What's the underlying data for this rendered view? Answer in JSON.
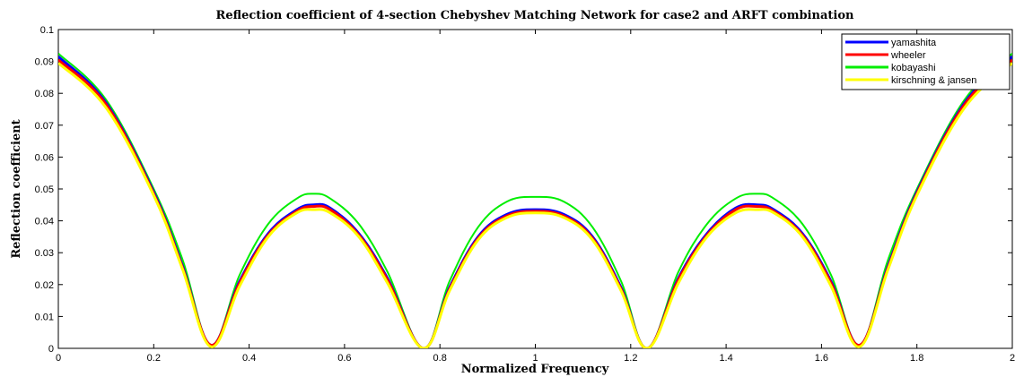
{
  "chart_data": {
    "type": "line",
    "title": "Reflection coefficient of 4-section Chebyshev Matching Network for case2 and ARFT combination",
    "xlabel": "Normalized Frequency",
    "ylabel": "Reflection coefficient",
    "xlim": [
      0,
      2
    ],
    "ylim": [
      0,
      0.1
    ],
    "x_ticks": [
      "0",
      "0.2",
      "0.4",
      "0.6",
      "0.8",
      "1",
      "1.2",
      "1.4",
      "1.6",
      "1.8",
      "2"
    ],
    "x_tick_values": [
      0,
      0.2,
      0.4,
      0.6,
      0.8,
      1.0,
      1.2,
      1.4,
      1.6,
      1.8,
      2.0
    ],
    "y_ticks": [
      "0",
      "0.01",
      "0.02",
      "0.03",
      "0.04",
      "0.05",
      "0.06",
      "0.07",
      "0.08",
      "0.09",
      "0.1"
    ],
    "y_tick_values": [
      0,
      0.01,
      0.02,
      0.03,
      0.04,
      0.05,
      0.06,
      0.07,
      0.08,
      0.09,
      0.1
    ],
    "grid": false,
    "legend_position": "top-right",
    "series": [
      {
        "name": "yamashita",
        "color": "#0000ff",
        "x": [
          0,
          0.1,
          0.2,
          0.26,
          0.32,
          0.38,
          0.44,
          0.5,
          0.535,
          0.57,
          0.63,
          0.69,
          0.765,
          0.82,
          0.88,
          0.94,
          1.0,
          1.06,
          1.12,
          1.18,
          1.235,
          1.3,
          1.36,
          1.42,
          1.465,
          1.5,
          1.56,
          1.62,
          1.68,
          1.74,
          1.8,
          1.9,
          2.0
        ],
        "y": [
          0.0915,
          0.077,
          0.049,
          0.026,
          0.001,
          0.021,
          0.036,
          0.0435,
          0.045,
          0.044,
          0.036,
          0.022,
          0.0,
          0.019,
          0.035,
          0.042,
          0.0435,
          0.042,
          0.035,
          0.019,
          0.0,
          0.022,
          0.036,
          0.044,
          0.045,
          0.0435,
          0.036,
          0.021,
          0.001,
          0.026,
          0.049,
          0.077,
          0.0915
        ]
      },
      {
        "name": "wheeler",
        "color": "#ff0000",
        "x": [
          0,
          0.1,
          0.2,
          0.26,
          0.32,
          0.38,
          0.44,
          0.5,
          0.535,
          0.57,
          0.63,
          0.69,
          0.765,
          0.82,
          0.88,
          0.94,
          1.0,
          1.06,
          1.12,
          1.18,
          1.235,
          1.3,
          1.36,
          1.42,
          1.465,
          1.5,
          1.56,
          1.62,
          1.68,
          1.74,
          1.8,
          1.9,
          2.0
        ],
        "y": [
          0.0905,
          0.0765,
          0.0485,
          0.0255,
          0.001,
          0.0205,
          0.0355,
          0.043,
          0.0445,
          0.0435,
          0.0355,
          0.0215,
          0.0,
          0.0185,
          0.0345,
          0.0415,
          0.043,
          0.0415,
          0.0345,
          0.0185,
          0.0,
          0.0215,
          0.0355,
          0.0435,
          0.0445,
          0.043,
          0.0355,
          0.0205,
          0.001,
          0.0255,
          0.0485,
          0.0765,
          0.0905
        ]
      },
      {
        "name": "kobayashi",
        "color": "#00ee00",
        "x": [
          0,
          0.1,
          0.2,
          0.26,
          0.32,
          0.38,
          0.44,
          0.5,
          0.535,
          0.57,
          0.63,
          0.69,
          0.765,
          0.82,
          0.88,
          0.94,
          1.0,
          1.06,
          1.12,
          1.18,
          1.235,
          1.3,
          1.36,
          1.42,
          1.465,
          1.5,
          1.56,
          1.62,
          1.68,
          1.74,
          1.8,
          1.9,
          2.0
        ],
        "y": [
          0.0925,
          0.078,
          0.05,
          0.028,
          0.001,
          0.023,
          0.039,
          0.047,
          0.0485,
          0.047,
          0.039,
          0.024,
          0.0,
          0.021,
          0.038,
          0.046,
          0.0475,
          0.046,
          0.038,
          0.021,
          0.0,
          0.024,
          0.039,
          0.047,
          0.0485,
          0.047,
          0.039,
          0.023,
          0.001,
          0.028,
          0.05,
          0.078,
          0.0925
        ]
      },
      {
        "name": "kirschning & jansen",
        "color": "#ffff00",
        "x": [
          0,
          0.1,
          0.2,
          0.26,
          0.32,
          0.38,
          0.44,
          0.5,
          0.535,
          0.57,
          0.63,
          0.69,
          0.765,
          0.82,
          0.88,
          0.94,
          1.0,
          1.06,
          1.12,
          1.18,
          1.235,
          1.3,
          1.36,
          1.42,
          1.465,
          1.5,
          1.56,
          1.62,
          1.68,
          1.74,
          1.8,
          1.9,
          2.0
        ],
        "y": [
          0.0895,
          0.0755,
          0.048,
          0.025,
          0.0005,
          0.0195,
          0.035,
          0.0425,
          0.0435,
          0.0425,
          0.035,
          0.0205,
          0.0,
          0.018,
          0.034,
          0.041,
          0.0425,
          0.041,
          0.034,
          0.018,
          0.0,
          0.0205,
          0.035,
          0.0425,
          0.0435,
          0.0425,
          0.035,
          0.0195,
          0.0005,
          0.025,
          0.048,
          0.0755,
          0.0895
        ]
      }
    ]
  }
}
